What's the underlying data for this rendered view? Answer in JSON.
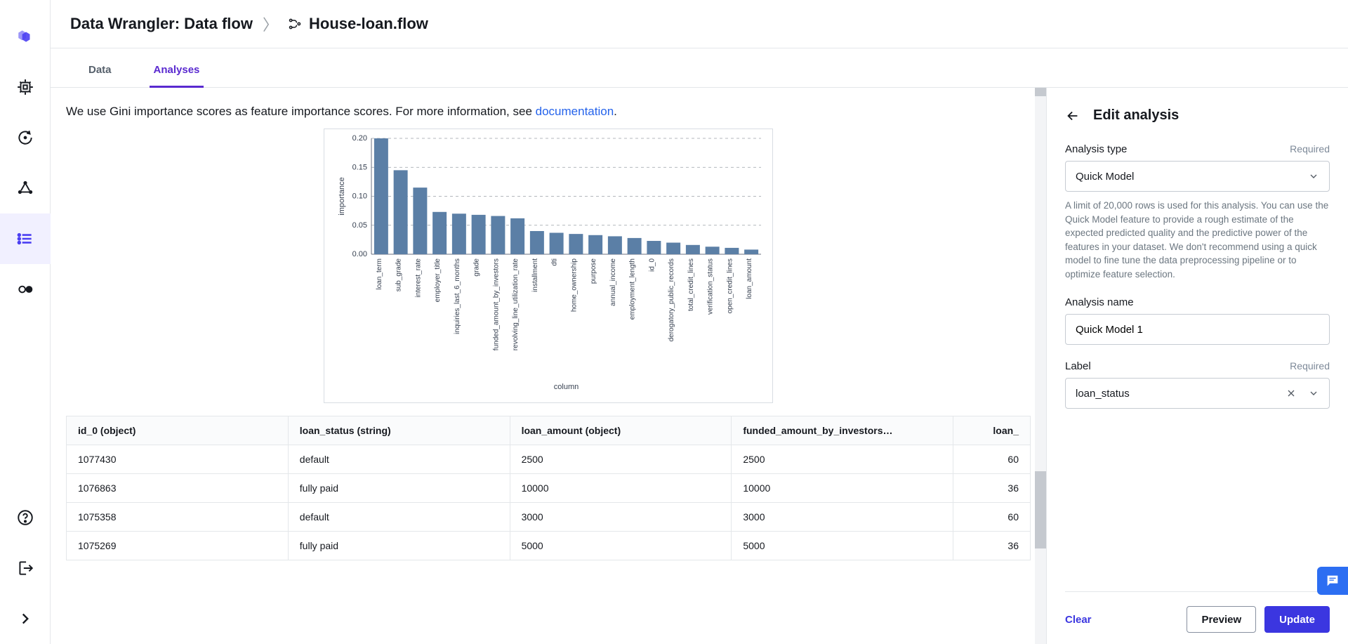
{
  "breadcrumb": {
    "root": "Data Wrangler: Data flow",
    "file": "House-loan.flow"
  },
  "tabs": {
    "data": "Data",
    "analyses": "Analyses"
  },
  "description": {
    "text_before": "We use Gini importance scores as feature importance scores. For more information, see ",
    "link": "documentation",
    "text_after": "."
  },
  "chart": {
    "type": "bar",
    "y_label": "importance",
    "x_label": "column",
    "ylim": [
      0.0,
      0.2
    ],
    "ytick_step": 0.05,
    "yticks": [
      "0.00",
      "0.05",
      "0.10",
      "0.15",
      "0.20"
    ],
    "bar_color": "#5b7fa6",
    "grid_color": "#9aa0a6",
    "background_color": "#ffffff",
    "categories": [
      "loan_term",
      "sub_grade",
      "interest_rate",
      "employer_title",
      "inquiries_last_6_months",
      "grade",
      "funded_amount_by_investors",
      "revolving_line_utilization_rate",
      "installment",
      "dti",
      "home_ownership",
      "purpose",
      "annual_income",
      "employment_length",
      "id_0",
      "derogatory_public_records",
      "total_credit_lines",
      "verification_status",
      "open_credit_lines",
      "loan_amount"
    ],
    "values": [
      0.2,
      0.145,
      0.115,
      0.073,
      0.07,
      0.068,
      0.066,
      0.062,
      0.04,
      0.037,
      0.035,
      0.033,
      0.031,
      0.028,
      0.023,
      0.02,
      0.016,
      0.013,
      0.011,
      0.008
    ]
  },
  "table": {
    "columns": [
      "id_0 (object)",
      "loan_status (string)",
      "loan_amount (object)",
      "funded_amount_by_investors…",
      "loan_"
    ],
    "rows": [
      [
        "1077430",
        "default",
        "2500",
        "2500",
        "60"
      ],
      [
        "1076863",
        "fully paid",
        "10000",
        "10000",
        "36"
      ],
      [
        "1075358",
        "default",
        "3000",
        "3000",
        "60"
      ],
      [
        "1075269",
        "fully paid",
        "5000",
        "5000",
        "36"
      ]
    ]
  },
  "panel": {
    "title": "Edit analysis",
    "type_label": "Analysis type",
    "required": "Required",
    "type_value": "Quick Model",
    "help": "A limit of 20,000 rows is used for this analysis. You can use the Quick Model feature to provide a rough estimate of the expected predicted quality and the predictive power of the features in your dataset. We don't recommend using a quick model to fine tune the data preprocessing pipeline or to optimize feature selection.",
    "name_label": "Analysis name",
    "name_value": "Quick Model 1",
    "label_label": "Label",
    "label_value": "loan_status",
    "clear": "Clear",
    "preview": "Preview",
    "update": "Update"
  }
}
